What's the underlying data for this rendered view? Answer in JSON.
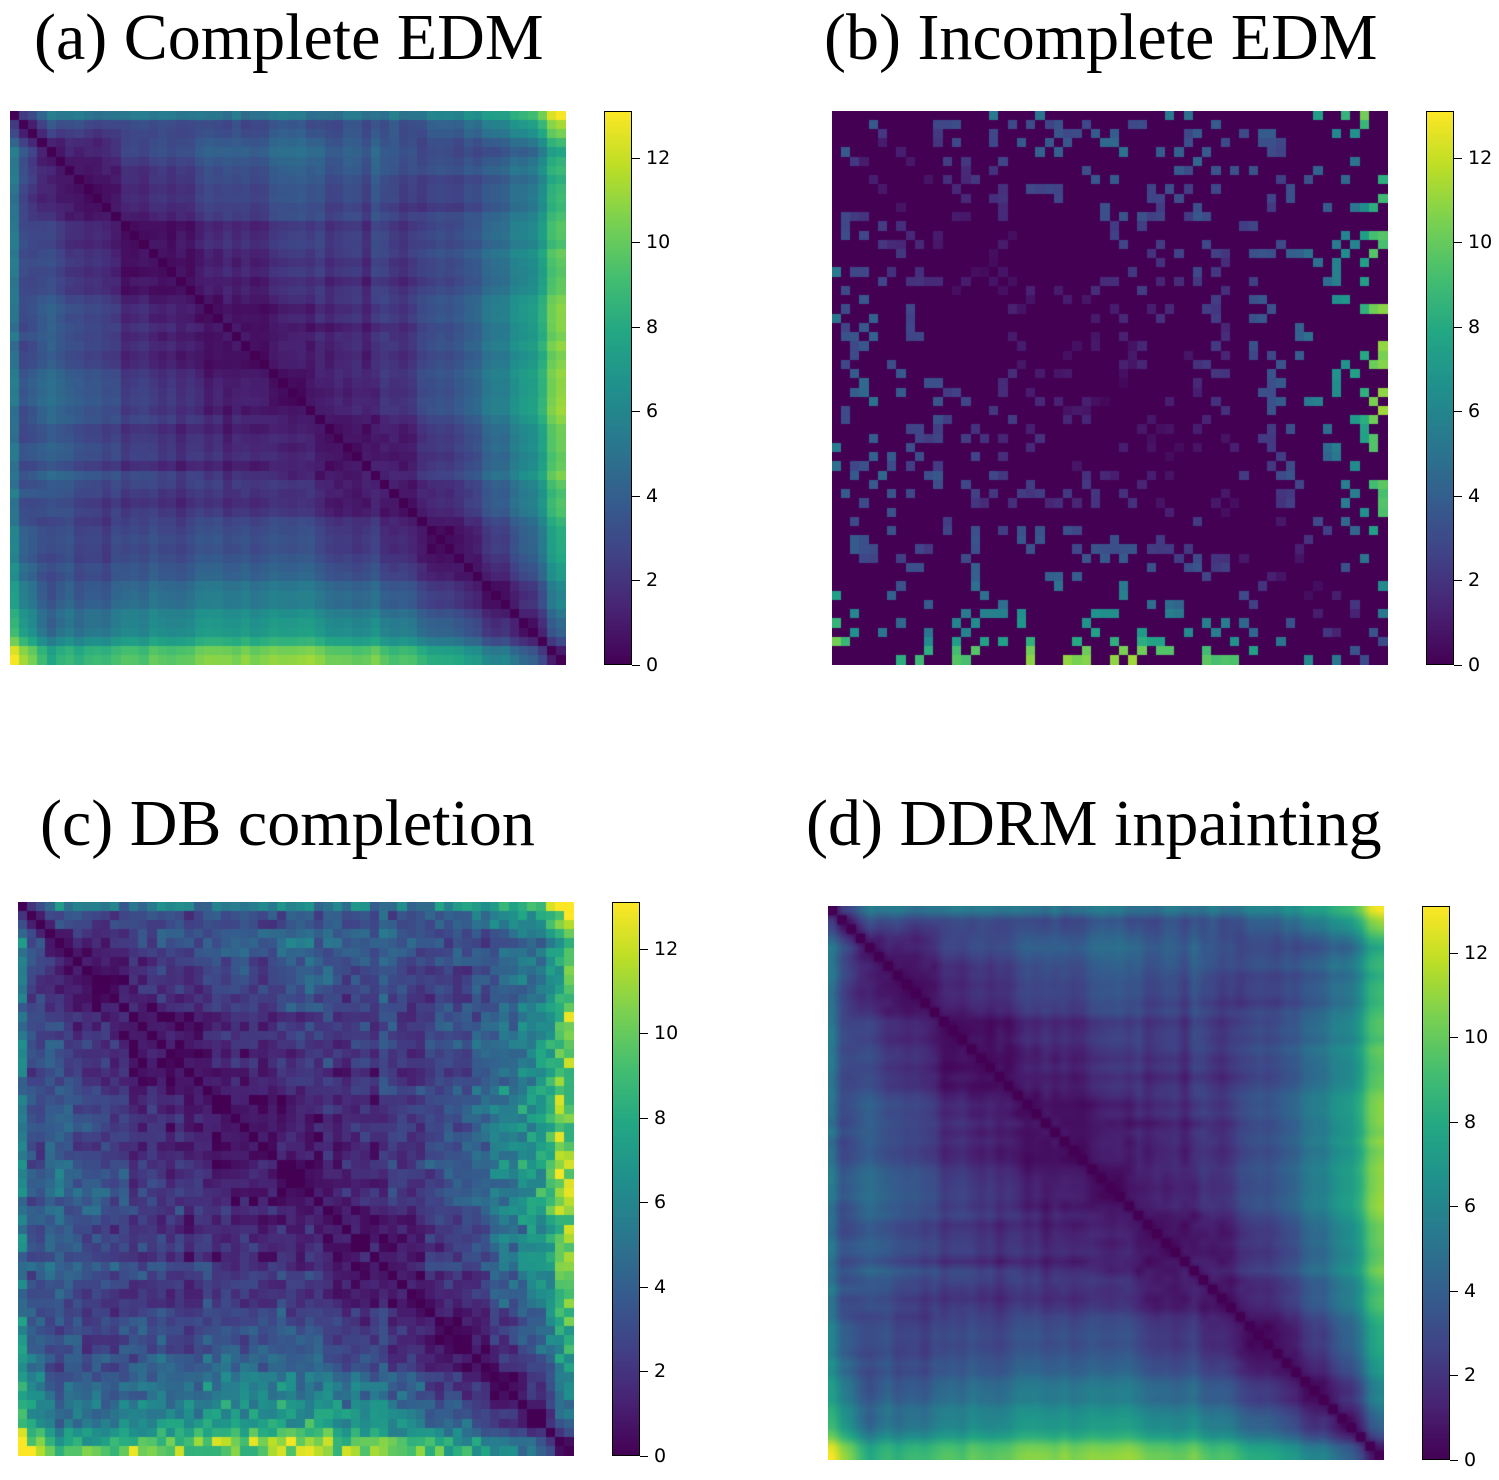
{
  "chart_data": [
    {
      "type": "heatmap",
      "title": "(a) Complete EDM",
      "variant": "complete",
      "matrix_size": 60,
      "colormap": "viridis",
      "vmin": 0,
      "vmax": 13.1,
      "colorbar_ticks": [
        "0",
        "2",
        "4",
        "6",
        "8",
        "10",
        "12"
      ],
      "xlabel": "",
      "ylabel": ""
    },
    {
      "type": "heatmap",
      "title": "(b) Incomplete EDM",
      "variant": "incomplete",
      "matrix_size": 60,
      "colormap": "viridis",
      "vmin": 0,
      "vmax": 13.1,
      "colorbar_ticks": [
        "0",
        "2",
        "4",
        "6",
        "8",
        "10",
        "12"
      ],
      "observed_fraction": 0.2,
      "xlabel": "",
      "ylabel": ""
    },
    {
      "type": "heatmap",
      "title": "(c) DB completion",
      "variant": "noisy",
      "matrix_size": 60,
      "colormap": "viridis",
      "vmin": 0,
      "vmax": 13.1,
      "colorbar_ticks": [
        "0",
        "2",
        "4",
        "6",
        "8",
        "10",
        "12"
      ],
      "xlabel": "",
      "ylabel": ""
    },
    {
      "type": "heatmap",
      "title": "(d) DDRM inpainting",
      "variant": "smooth",
      "matrix_size": 60,
      "colormap": "viridis",
      "vmin": 0,
      "vmax": 13.1,
      "colorbar_ticks": [
        "0",
        "2",
        "4",
        "6",
        "8",
        "10",
        "12"
      ],
      "xlabel": "",
      "ylabel": ""
    }
  ]
}
